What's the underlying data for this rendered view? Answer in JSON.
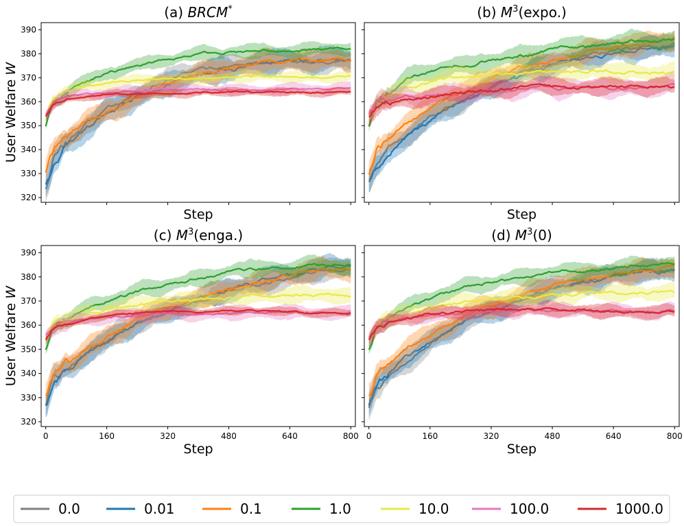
{
  "figure": {
    "legend_position": "bottom"
  },
  "chart_data": [
    {
      "type": "line",
      "panel": "a",
      "title_prefix": "(a) ",
      "title_main": "BRCM",
      "title_sup": "*",
      "title_suffix": "",
      "xlabel": "Step",
      "ylabel": "User Welfare W",
      "xlim": [
        -12,
        812
      ],
      "ylim": [
        318,
        393
      ],
      "xticks": [
        0,
        160,
        320,
        480,
        640,
        800
      ],
      "yticks": [
        320,
        330,
        340,
        350,
        360,
        370,
        380,
        390
      ],
      "x_ticklabels_shown": false,
      "y_ticklabels_shown": true,
      "series": [
        {
          "name": "0.0",
          "color": "#7f7f7f",
          "x": [
            0,
            20,
            50,
            100,
            160,
            240,
            320,
            400,
            480,
            560,
            640,
            720,
            800
          ],
          "y": [
            324,
            336,
            342,
            350,
            357,
            364,
            369,
            373,
            375,
            376,
            377,
            377,
            377
          ],
          "band": 4.0
        },
        {
          "name": "0.01",
          "color": "#1f77b4",
          "x": [
            0,
            20,
            50,
            100,
            160,
            240,
            320,
            400,
            480,
            560,
            640,
            720,
            800
          ],
          "y": [
            326,
            335,
            341,
            348,
            355,
            362,
            367,
            371,
            374,
            376,
            377,
            377,
            377
          ],
          "band": 4.5
        },
        {
          "name": "0.1",
          "color": "#ff7f0e",
          "x": [
            0,
            20,
            50,
            100,
            160,
            240,
            320,
            400,
            480,
            560,
            640,
            720,
            800
          ],
          "y": [
            331,
            340,
            345,
            351,
            356,
            362,
            367,
            371,
            374,
            376,
            377,
            378,
            378
          ],
          "band": 4.0
        },
        {
          "name": "1.0",
          "color": "#2ca02c",
          "x": [
            0,
            20,
            50,
            100,
            160,
            240,
            320,
            400,
            480,
            560,
            640,
            720,
            800
          ],
          "y": [
            350,
            360,
            364,
            368,
            372,
            375,
            378,
            380,
            381,
            381,
            381.5,
            382,
            382
          ],
          "band": 2.5
        },
        {
          "name": "10.0",
          "color": "#e8e84a",
          "x": [
            0,
            20,
            50,
            100,
            160,
            240,
            320,
            400,
            480,
            560,
            640,
            720,
            800
          ],
          "y": [
            354,
            361,
            364,
            366,
            368,
            369,
            370,
            370,
            370.5,
            370.5,
            370.5,
            370.5,
            370.5
          ],
          "band": 2.0
        },
        {
          "name": "100.0",
          "color": "#e377c2",
          "x": [
            0,
            20,
            50,
            100,
            160,
            240,
            320,
            400,
            480,
            560,
            640,
            720,
            800
          ],
          "y": [
            355,
            360,
            362,
            363,
            364,
            364.5,
            365,
            365,
            365,
            365,
            365.5,
            365.5,
            365.5
          ],
          "band": 2.0
        },
        {
          "name": "1000.0",
          "color": "#d62728",
          "x": [
            0,
            20,
            50,
            100,
            160,
            240,
            320,
            400,
            480,
            560,
            640,
            720,
            800
          ],
          "y": [
            354,
            359,
            361,
            362,
            363,
            363,
            363.5,
            364,
            364,
            364,
            364,
            364,
            364
          ],
          "band": 1.5
        }
      ]
    },
    {
      "type": "line",
      "panel": "b",
      "title_prefix": "(b) ",
      "title_main": "M",
      "title_sup": "3",
      "title_suffix": "(expo.)",
      "xlabel": "Step",
      "ylabel": "",
      "xlim": [
        -12,
        812
      ],
      "ylim": [
        318,
        393
      ],
      "xticks": [
        0,
        160,
        320,
        480,
        640,
        800
      ],
      "yticks": [
        320,
        330,
        340,
        350,
        360,
        370,
        380,
        390
      ],
      "x_ticklabels_shown": false,
      "y_ticklabels_shown": false,
      "series": [
        {
          "name": "0.0",
          "color": "#7f7f7f",
          "x": [
            0,
            20,
            50,
            100,
            160,
            240,
            320,
            400,
            480,
            560,
            640,
            720,
            800
          ],
          "y": [
            328,
            335,
            340,
            347,
            353,
            361,
            367,
            372,
            376,
            379,
            381,
            383,
            384
          ],
          "band": 4.0
        },
        {
          "name": "0.01",
          "color": "#1f77b4",
          "x": [
            0,
            20,
            50,
            100,
            160,
            240,
            320,
            400,
            480,
            560,
            640,
            720,
            800
          ],
          "y": [
            327,
            334,
            339,
            346,
            352,
            360,
            366,
            371,
            375,
            378,
            380,
            382,
            383
          ],
          "band": 4.0
        },
        {
          "name": "0.1",
          "color": "#ff7f0e",
          "x": [
            0,
            20,
            50,
            100,
            160,
            240,
            320,
            400,
            480,
            560,
            640,
            720,
            800
          ],
          "y": [
            330,
            340,
            345,
            351,
            357,
            364,
            369,
            374,
            377,
            380,
            382,
            384,
            386
          ],
          "band": 4.0
        },
        {
          "name": "1.0",
          "color": "#2ca02c",
          "x": [
            0,
            20,
            50,
            100,
            160,
            240,
            320,
            400,
            480,
            560,
            640,
            720,
            800
          ],
          "y": [
            350,
            360,
            364,
            369,
            372,
            375,
            377,
            379,
            381,
            383,
            384,
            385,
            386
          ],
          "band": 3.5
        },
        {
          "name": "10.0",
          "color": "#e8e84a",
          "x": [
            0,
            20,
            50,
            100,
            160,
            240,
            320,
            400,
            480,
            560,
            640,
            720,
            800
          ],
          "y": [
            354,
            360,
            363,
            366,
            368,
            370,
            371,
            372,
            372,
            373,
            373,
            372,
            372
          ],
          "band": 3.5
        },
        {
          "name": "100.0",
          "color": "#e377c2",
          "x": [
            0,
            20,
            50,
            100,
            160,
            240,
            320,
            400,
            480,
            560,
            640,
            720,
            800
          ],
          "y": [
            355,
            359,
            361,
            362,
            363,
            364,
            365,
            365,
            366,
            366,
            366,
            366,
            366
          ],
          "band": 3.5
        },
        {
          "name": "1000.0",
          "color": "#d62728",
          "x": [
            0,
            20,
            50,
            100,
            160,
            240,
            320,
            400,
            480,
            560,
            640,
            720,
            800
          ],
          "y": [
            354,
            358,
            360,
            361,
            362,
            364,
            365,
            366,
            366,
            366,
            366.5,
            366.5,
            366
          ],
          "band": 3.0
        }
      ]
    },
    {
      "type": "line",
      "panel": "c",
      "title_prefix": "(c) ",
      "title_main": "M",
      "title_sup": "3",
      "title_suffix": "(enga.)",
      "xlabel": "Step",
      "ylabel": "User Welfare W",
      "xlim": [
        -12,
        812
      ],
      "ylim": [
        318,
        393
      ],
      "xticks": [
        0,
        160,
        320,
        480,
        640,
        800
      ],
      "yticks": [
        320,
        330,
        340,
        350,
        360,
        370,
        380,
        390
      ],
      "x_ticklabels_shown": true,
      "y_ticklabels_shown": true,
      "series": [
        {
          "name": "0.0",
          "color": "#7f7f7f",
          "x": [
            0,
            20,
            50,
            100,
            160,
            240,
            320,
            400,
            480,
            560,
            640,
            720,
            800
          ],
          "y": [
            327,
            336,
            341,
            348,
            354,
            361,
            366,
            370,
            374,
            377,
            380,
            382,
            384
          ],
          "band": 4.0
        },
        {
          "name": "0.01",
          "color": "#1f77b4",
          "x": [
            0,
            20,
            50,
            100,
            160,
            240,
            320,
            400,
            480,
            560,
            640,
            720,
            800
          ],
          "y": [
            327,
            335,
            340,
            347,
            353,
            360,
            366,
            371,
            375,
            378,
            381,
            383,
            385
          ],
          "band": 4.0
        },
        {
          "name": "0.1",
          "color": "#ff7f0e",
          "x": [
            0,
            20,
            50,
            100,
            160,
            240,
            320,
            400,
            480,
            560,
            640,
            720,
            800
          ],
          "y": [
            331,
            339,
            343,
            349,
            355,
            362,
            367,
            371,
            375,
            378,
            381,
            383,
            384
          ],
          "band": 4.0
        },
        {
          "name": "1.0",
          "color": "#2ca02c",
          "x": [
            0,
            20,
            50,
            100,
            160,
            240,
            320,
            400,
            480,
            560,
            640,
            720,
            800
          ],
          "y": [
            350,
            359,
            362,
            366,
            370,
            374,
            377,
            380,
            382,
            383,
            384,
            385,
            385
          ],
          "band": 3.0
        },
        {
          "name": "10.0",
          "color": "#e8e84a",
          "x": [
            0,
            20,
            50,
            100,
            160,
            240,
            320,
            400,
            480,
            560,
            640,
            720,
            800
          ],
          "y": [
            355,
            360,
            362,
            364,
            366,
            368,
            369.5,
            370.5,
            371.5,
            372,
            372.5,
            372.5,
            372.5
          ],
          "band": 3.0
        },
        {
          "name": "100.0",
          "color": "#e377c2",
          "x": [
            0,
            20,
            50,
            100,
            160,
            240,
            320,
            400,
            480,
            560,
            640,
            720,
            800
          ],
          "y": [
            356,
            359,
            361,
            362.5,
            363.5,
            364,
            364.5,
            365,
            365,
            365,
            365,
            365,
            365
          ],
          "band": 2.5
        },
        {
          "name": "1000.0",
          "color": "#d62728",
          "x": [
            0,
            20,
            50,
            100,
            160,
            240,
            320,
            400,
            480,
            560,
            640,
            720,
            800
          ],
          "y": [
            354,
            358,
            360,
            362,
            364,
            365,
            365.5,
            365.5,
            366,
            366,
            365.5,
            365,
            365
          ],
          "band": 1.5
        }
      ]
    },
    {
      "type": "line",
      "panel": "d",
      "title_prefix": "(d) ",
      "title_main": "M",
      "title_sup": "3",
      "title_suffix": "(0)",
      "xlabel": "Step",
      "ylabel": "",
      "xlim": [
        -12,
        812
      ],
      "ylim": [
        318,
        393
      ],
      "xticks": [
        0,
        160,
        320,
        480,
        640,
        800
      ],
      "yticks": [
        320,
        330,
        340,
        350,
        360,
        370,
        380,
        390
      ],
      "x_ticklabels_shown": true,
      "y_ticklabels_shown": false,
      "series": [
        {
          "name": "0.0",
          "color": "#7f7f7f",
          "x": [
            0,
            20,
            50,
            100,
            160,
            240,
            320,
            400,
            480,
            560,
            640,
            720,
            800
          ],
          "y": [
            326,
            334,
            339,
            346,
            352,
            360,
            366,
            371,
            375,
            378,
            380,
            382,
            383
          ],
          "band": 4.0
        },
        {
          "name": "0.01",
          "color": "#1f77b4",
          "x": [
            0,
            20,
            50,
            100,
            160,
            240,
            320,
            400,
            480,
            560,
            640,
            720,
            800
          ],
          "y": [
            327,
            335,
            340,
            347,
            353,
            361,
            366,
            371,
            375,
            378,
            380,
            382,
            383
          ],
          "band": 4.0
        },
        {
          "name": "0.1",
          "color": "#ff7f0e",
          "x": [
            0,
            20,
            50,
            100,
            160,
            240,
            320,
            400,
            480,
            560,
            640,
            720,
            800
          ],
          "y": [
            331,
            339,
            344,
            350,
            356,
            363,
            368,
            372,
            376,
            379,
            381,
            383,
            385
          ],
          "band": 4.0
        },
        {
          "name": "1.0",
          "color": "#2ca02c",
          "x": [
            0,
            20,
            50,
            100,
            160,
            240,
            320,
            400,
            480,
            560,
            640,
            720,
            800
          ],
          "y": [
            350,
            359,
            363,
            367,
            371,
            375,
            378,
            380,
            382,
            383,
            384,
            385,
            385.5
          ],
          "band": 3.0
        },
        {
          "name": "10.0",
          "color": "#e8e84a",
          "x": [
            0,
            20,
            50,
            100,
            160,
            240,
            320,
            400,
            480,
            560,
            640,
            720,
            800
          ],
          "y": [
            355,
            360,
            363,
            365,
            367,
            369,
            370.5,
            371.5,
            372.5,
            373,
            373.5,
            373.5,
            373.5
          ],
          "band": 3.0
        },
        {
          "name": "100.0",
          "color": "#e377c2",
          "x": [
            0,
            20,
            50,
            100,
            160,
            240,
            320,
            400,
            480,
            560,
            640,
            720,
            800
          ],
          "y": [
            355,
            359,
            361,
            363,
            364,
            365,
            365.5,
            366,
            366,
            366,
            366,
            366,
            366
          ],
          "band": 2.5
        },
        {
          "name": "1000.0",
          "color": "#d62728",
          "x": [
            0,
            20,
            50,
            100,
            160,
            240,
            320,
            400,
            480,
            560,
            640,
            720,
            800
          ],
          "y": [
            354,
            358,
            361,
            363,
            364.5,
            365.5,
            366,
            366.5,
            366.5,
            366,
            365.5,
            365.5,
            365.5
          ],
          "band": 2.5
        }
      ]
    }
  ]
}
